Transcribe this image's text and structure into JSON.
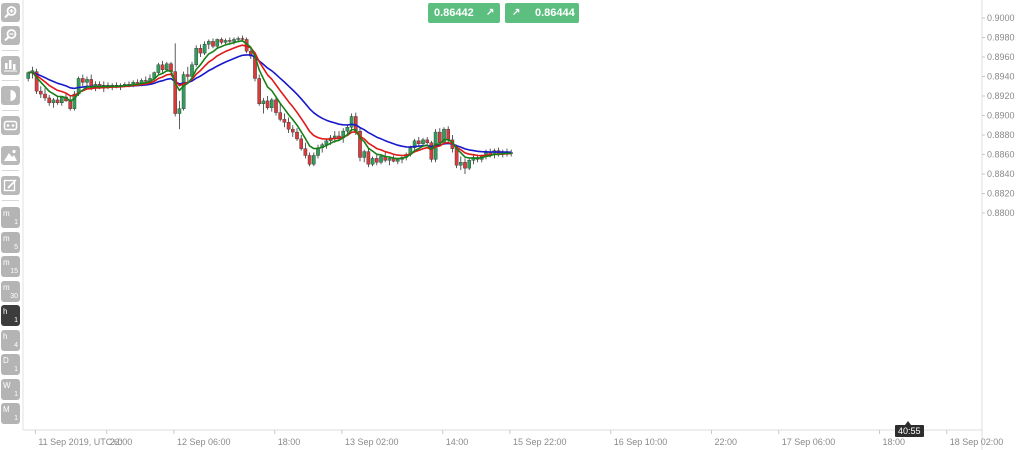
{
  "toolbar": {
    "tools": [
      {
        "name": "zoom-in-icon"
      },
      {
        "name": "zoom-out-icon"
      },
      {
        "name": "indicators-icon"
      },
      {
        "name": "theme-icon"
      },
      {
        "name": "chart-type-icon"
      },
      {
        "name": "image-icon"
      },
      {
        "name": "edit-icon"
      }
    ],
    "timeframes": [
      {
        "unit": "m",
        "num": "1",
        "active": false
      },
      {
        "unit": "m",
        "num": "5",
        "active": false
      },
      {
        "unit": "m",
        "num": "15",
        "active": false
      },
      {
        "unit": "m",
        "num": "30",
        "active": false
      },
      {
        "unit": "h",
        "num": "1",
        "active": true
      },
      {
        "unit": "h",
        "num": "4",
        "active": false
      },
      {
        "unit": "D",
        "num": "1",
        "active": false
      },
      {
        "unit": "W",
        "num": "1",
        "active": false
      },
      {
        "unit": "M",
        "num": "1",
        "active": false
      }
    ]
  },
  "trade": {
    "sell_price": "0.86442",
    "buy_price": "0.86444",
    "sell_arrow": "↗",
    "buy_arrow": "↗"
  },
  "countdown": "40:55",
  "colors": {
    "bull": "#2f9e5b",
    "bear": "#d93b3b",
    "ma_fast": "#168016",
    "ma_mid": "#e01818",
    "ma_slow": "#1818cc",
    "buttons": "#5cbf7f"
  },
  "chart_data": {
    "type": "candlestick",
    "ylim": [
      0.8785,
      0.9007
    ],
    "y_ticks": [
      "0.9000",
      "0.8980",
      "0.8960",
      "0.8940",
      "0.8920",
      "0.8900",
      "0.8880",
      "0.8860",
      "0.8840",
      "0.8820",
      "0.8800"
    ],
    "x_ticks": [
      {
        "label": "11 Sep 2019, UTC+0",
        "index": 1.7
      },
      {
        "label": "22:00",
        "index": 18.7
      },
      {
        "label": "12 Sep 06:00",
        "index": 34.7
      },
      {
        "label": "18:00",
        "index": 58.7
      },
      {
        "label": "13 Sep 02:00",
        "index": 74.7
      },
      {
        "label": "14:00",
        "index": 98.7
      },
      {
        "label": "15 Sep 22:00",
        "index": 114.7
      },
      {
        "label": "16 Sep 10:00",
        "index": 138.7
      },
      {
        "label": "22:00",
        "index": 162.7
      },
      {
        "label": "17 Sep 06:00",
        "index": 178.7
      },
      {
        "label": "18:00",
        "index": 202.7
      },
      {
        "label": "18 Sep 02:00",
        "index": 218.7
      }
    ],
    "candles": [
      [
        0.8938,
        0.8945,
        0.8935,
        0.8944
      ],
      [
        0.8944,
        0.895,
        0.8938,
        0.8946
      ],
      [
        0.8945,
        0.8948,
        0.8922,
        0.8925
      ],
      [
        0.8925,
        0.893,
        0.8918,
        0.8922
      ],
      [
        0.8922,
        0.8928,
        0.8915,
        0.8918
      ],
      [
        0.8918,
        0.8921,
        0.891,
        0.8913
      ],
      [
        0.8913,
        0.8918,
        0.8908,
        0.8916
      ],
      [
        0.8916,
        0.892,
        0.8911,
        0.8913
      ],
      [
        0.8913,
        0.892,
        0.891,
        0.8919
      ],
      [
        0.8919,
        0.8922,
        0.8914,
        0.8915
      ],
      [
        0.8915,
        0.892,
        0.8905,
        0.8907
      ],
      [
        0.8907,
        0.8925,
        0.8905,
        0.8922
      ],
      [
        0.8922,
        0.894,
        0.892,
        0.8938
      ],
      [
        0.8938,
        0.8942,
        0.893,
        0.8934
      ],
      [
        0.8934,
        0.894,
        0.8928,
        0.8937
      ],
      [
        0.8937,
        0.8942,
        0.8926,
        0.8929
      ],
      [
        0.8929,
        0.8935,
        0.8925,
        0.8932
      ],
      [
        0.8932,
        0.8935,
        0.8927,
        0.8928
      ],
      [
        0.8928,
        0.8935,
        0.8924,
        0.8931
      ],
      [
        0.8931,
        0.8934,
        0.8927,
        0.8929
      ],
      [
        0.8929,
        0.8933,
        0.8926,
        0.8931
      ],
      [
        0.8931,
        0.8934,
        0.8928,
        0.8929
      ],
      [
        0.8929,
        0.8933,
        0.8926,
        0.8931
      ],
      [
        0.8931,
        0.8934,
        0.8929,
        0.8932
      ],
      [
        0.8932,
        0.8935,
        0.8929,
        0.8931
      ],
      [
        0.8931,
        0.8936,
        0.8929,
        0.8934
      ],
      [
        0.8934,
        0.8937,
        0.8931,
        0.8932
      ],
      [
        0.8932,
        0.8938,
        0.893,
        0.8936
      ],
      [
        0.8936,
        0.894,
        0.8933,
        0.8935
      ],
      [
        0.8935,
        0.8942,
        0.8933,
        0.8938
      ],
      [
        0.8938,
        0.8945,
        0.8936,
        0.8944
      ],
      [
        0.8944,
        0.8954,
        0.8942,
        0.8952
      ],
      [
        0.8952,
        0.8956,
        0.8944,
        0.8947
      ],
      [
        0.8947,
        0.8955,
        0.8945,
        0.8953
      ],
      [
        0.8953,
        0.8955,
        0.8943,
        0.8945
      ],
      [
        0.8945,
        0.8974,
        0.8899,
        0.8902
      ],
      [
        0.8902,
        0.8915,
        0.8886,
        0.8907
      ],
      [
        0.8907,
        0.8945,
        0.8905,
        0.8942
      ],
      [
        0.8942,
        0.895,
        0.8935,
        0.894
      ],
      [
        0.894,
        0.8955,
        0.8938,
        0.8952
      ],
      [
        0.8952,
        0.8972,
        0.895,
        0.8969
      ],
      [
        0.8969,
        0.8973,
        0.896,
        0.8964
      ],
      [
        0.8964,
        0.8976,
        0.8962,
        0.8973
      ],
      [
        0.8973,
        0.8978,
        0.8968,
        0.8976
      ],
      [
        0.8976,
        0.8979,
        0.8969,
        0.8971
      ],
      [
        0.8971,
        0.8979,
        0.8969,
        0.8978
      ],
      [
        0.8978,
        0.898,
        0.8973,
        0.8975
      ],
      [
        0.8975,
        0.8979,
        0.8972,
        0.8977
      ],
      [
        0.8977,
        0.898,
        0.8974,
        0.8976
      ],
      [
        0.8976,
        0.898,
        0.8973,
        0.8978
      ],
      [
        0.8978,
        0.8981,
        0.8975,
        0.8979
      ],
      [
        0.8979,
        0.8982,
        0.8976,
        0.8978
      ],
      [
        0.8978,
        0.898,
        0.8964,
        0.8966
      ],
      [
        0.8966,
        0.897,
        0.8958,
        0.8961
      ],
      [
        0.8961,
        0.8962,
        0.8935,
        0.8938
      ],
      [
        0.8938,
        0.8942,
        0.891,
        0.8912
      ],
      [
        0.8912,
        0.8918,
        0.8902,
        0.8915
      ],
      [
        0.8915,
        0.892,
        0.8906,
        0.8908
      ],
      [
        0.8908,
        0.8918,
        0.8904,
        0.8916
      ],
      [
        0.8916,
        0.892,
        0.89,
        0.8903
      ],
      [
        0.8903,
        0.8912,
        0.8894,
        0.8896
      ],
      [
        0.8896,
        0.8902,
        0.8888,
        0.8893
      ],
      [
        0.8893,
        0.8898,
        0.8882,
        0.8886
      ],
      [
        0.8886,
        0.889,
        0.8878,
        0.8883
      ],
      [
        0.8883,
        0.8887,
        0.8874,
        0.8876
      ],
      [
        0.8876,
        0.888,
        0.8864,
        0.8866
      ],
      [
        0.8866,
        0.8872,
        0.8856,
        0.8859
      ],
      [
        0.8859,
        0.8862,
        0.8848,
        0.885
      ],
      [
        0.885,
        0.8862,
        0.8848,
        0.8859
      ],
      [
        0.8859,
        0.887,
        0.8856,
        0.8867
      ],
      [
        0.8867,
        0.8872,
        0.8862,
        0.887
      ],
      [
        0.887,
        0.8876,
        0.8866,
        0.8874
      ],
      [
        0.8874,
        0.888,
        0.887,
        0.8877
      ],
      [
        0.8877,
        0.8884,
        0.8872,
        0.8879
      ],
      [
        0.8879,
        0.8884,
        0.8874,
        0.8877
      ],
      [
        0.8877,
        0.8887,
        0.8872,
        0.8884
      ],
      [
        0.8884,
        0.8891,
        0.888,
        0.8888
      ],
      [
        0.8888,
        0.8902,
        0.8884,
        0.8899
      ],
      [
        0.8899,
        0.8903,
        0.888,
        0.8884
      ],
      [
        0.8884,
        0.8888,
        0.8853,
        0.8857
      ],
      [
        0.8857,
        0.8865,
        0.8852,
        0.8863
      ],
      [
        0.8863,
        0.8866,
        0.8847,
        0.885
      ],
      [
        0.885,
        0.8858,
        0.8848,
        0.8856
      ],
      [
        0.8856,
        0.886,
        0.8849,
        0.8852
      ],
      [
        0.8852,
        0.886,
        0.885,
        0.8858
      ],
      [
        0.8858,
        0.8862,
        0.8852,
        0.8854
      ],
      [
        0.8854,
        0.8858,
        0.8849,
        0.8856
      ],
      [
        0.8856,
        0.8859,
        0.8852,
        0.8853
      ],
      [
        0.8853,
        0.8856,
        0.885,
        0.8855
      ],
      [
        0.8855,
        0.8858,
        0.8851,
        0.8857
      ],
      [
        0.8857,
        0.8862,
        0.8854,
        0.886
      ],
      [
        0.886,
        0.8869,
        0.8858,
        0.8867
      ],
      [
        0.8867,
        0.8876,
        0.8865,
        0.8874
      ],
      [
        0.8874,
        0.8878,
        0.8868,
        0.8871
      ],
      [
        0.8871,
        0.8877,
        0.8868,
        0.8875
      ],
      [
        0.8875,
        0.8878,
        0.887,
        0.8872
      ],
      [
        0.8872,
        0.8874,
        0.8852,
        0.8855
      ],
      [
        0.8855,
        0.8886,
        0.8852,
        0.8883
      ],
      [
        0.8883,
        0.8887,
        0.887,
        0.8872
      ],
      [
        0.8872,
        0.8888,
        0.887,
        0.8886
      ],
      [
        0.8886,
        0.8889,
        0.8872,
        0.8875
      ],
      [
        0.8875,
        0.888,
        0.8862,
        0.8866
      ],
      [
        0.8866,
        0.887,
        0.8846,
        0.8849
      ],
      [
        0.8849,
        0.8858,
        0.8844,
        0.8852
      ],
      [
        0.8852,
        0.8856,
        0.884,
        0.8846
      ],
      [
        0.8846,
        0.8856,
        0.8844,
        0.8854
      ],
      [
        0.8854,
        0.886,
        0.885,
        0.8857
      ],
      [
        0.8857,
        0.886,
        0.8852,
        0.8855
      ],
      [
        0.8855,
        0.886,
        0.8852,
        0.8858
      ],
      [
        0.8858,
        0.8865,
        0.8855,
        0.8862
      ],
      [
        0.8862,
        0.8866,
        0.8857,
        0.886
      ],
      [
        0.886,
        0.8866,
        0.8856,
        0.8864
      ],
      [
        0.8864,
        0.8867,
        0.8858,
        0.886
      ],
      [
        0.886,
        0.8865,
        0.8857,
        0.8863
      ],
      [
        0.8863,
        0.8866,
        0.8858,
        0.8861
      ],
      [
        0.8861,
        0.8865,
        0.8858,
        0.8862
      ]
    ],
    "ma_periods": {
      "fast": 5,
      "mid": 9,
      "slow": 14
    }
  }
}
